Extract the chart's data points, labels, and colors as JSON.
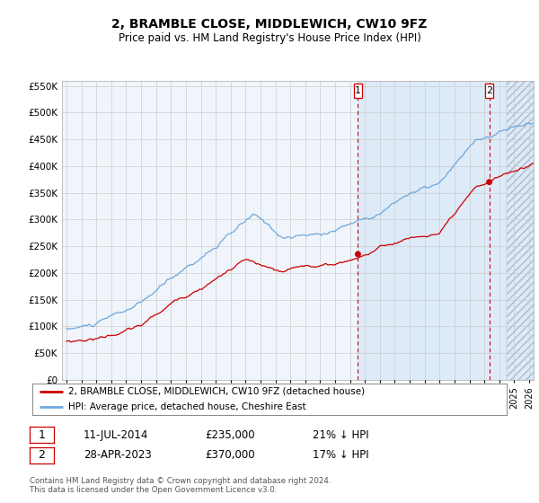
{
  "title": "2, BRAMBLE CLOSE, MIDDLEWICH, CW10 9FZ",
  "subtitle": "Price paid vs. HM Land Registry's House Price Index (HPI)",
  "ylim": [
    0,
    560000
  ],
  "yticks": [
    0,
    50000,
    100000,
    150000,
    200000,
    250000,
    300000,
    350000,
    400000,
    450000,
    500000,
    550000
  ],
  "ytick_labels": [
    "£0",
    "£50K",
    "£100K",
    "£150K",
    "£200K",
    "£250K",
    "£300K",
    "£350K",
    "£400K",
    "£450K",
    "£500K",
    "£550K"
  ],
  "sale1_date_num": 2014.53,
  "sale1_price": 235000,
  "sale2_date_num": 2023.33,
  "sale2_price": 370000,
  "sale1_date_str": "11-JUL-2014",
  "sale1_price_str": "£235,000",
  "sale1_pct": "21% ↓ HPI",
  "sale2_date_str": "28-APR-2023",
  "sale2_price_str": "£370,000",
  "sale2_pct": "17% ↓ HPI",
  "hpi_color": "#6fa8dc",
  "price_color": "#cc0000",
  "vline_color": "#cc0000",
  "bg_color": "#dce6f5",
  "shade_start": 2014.5,
  "xlim_start": 1994.7,
  "xlim_end": 2026.3,
  "legend1_label": "2, BRAMBLE CLOSE, MIDDLEWICH, CW10 9FZ (detached house)",
  "legend2_label": "HPI: Average price, detached house, Cheshire East",
  "footer": "Contains HM Land Registry data © Crown copyright and database right 2024.\nThis data is licensed under the Open Government Licence v3.0."
}
